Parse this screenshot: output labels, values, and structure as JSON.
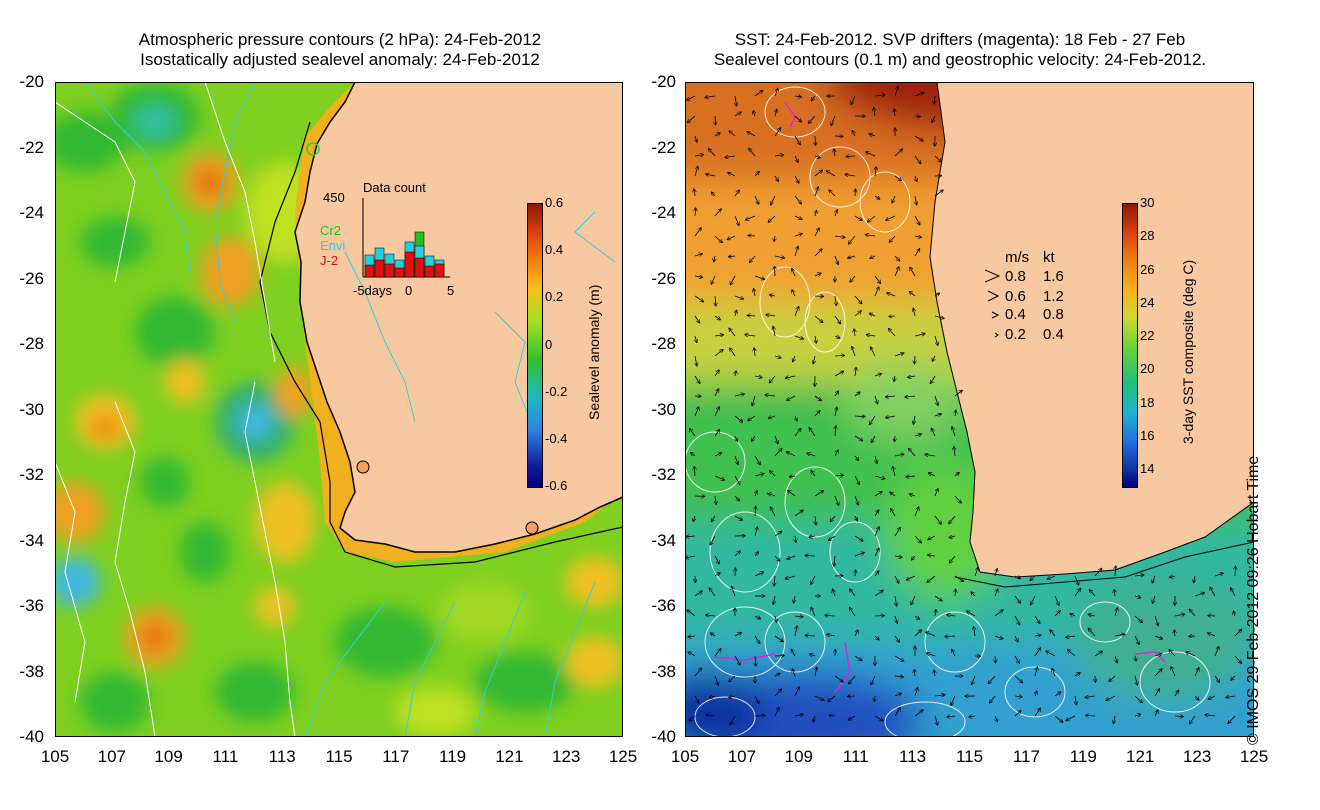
{
  "left_panel": {
    "title_line1": "Atmospheric pressure contours (2 hPa): 24-Feb-2012",
    "title_line2": "Isostatically adjusted sealevel anomaly: 24-Feb-2012",
    "colorbar": {
      "label": "Sealevel anomaly (m)",
      "ticks": [
        "0.6",
        "0.4",
        "0.2",
        "0",
        "-0.2",
        "-0.4",
        "-0.6"
      ],
      "range": [
        -0.6,
        0.6
      ]
    },
    "inset": {
      "title": "Data count",
      "y_max_label": "450",
      "x_labels": [
        "-5days",
        "0",
        "5"
      ],
      "legend": [
        {
          "label": "Cr2",
          "color": "#22c022"
        },
        {
          "label": "Envi",
          "color": "#22d0e0"
        },
        {
          "label": "J-2",
          "color": "#e01010"
        }
      ]
    }
  },
  "right_panel": {
    "title_line1": "SST: 24-Feb-2012. SVP drifters (magenta): 18 Feb - 27 Feb",
    "title_line2": "Sealevel contours (0.1 m) and geostrophic velocity: 24-Feb-2012.",
    "colorbar": {
      "label": "3-day SST composite (deg C)",
      "ticks": [
        "30",
        "28",
        "26",
        "24",
        "22",
        "20",
        "18",
        "16",
        "14"
      ],
      "range": [
        13,
        30
      ]
    },
    "speed_legend": {
      "header_ms": "m/s",
      "header_kt": "kt",
      "rows": [
        {
          "ms": "0.8",
          "kt": "1.6"
        },
        {
          "ms": "0.6",
          "kt": "1.2"
        },
        {
          "ms": "0.4",
          "kt": "0.8"
        },
        {
          "ms": "0.2",
          "kt": "0.4"
        }
      ]
    }
  },
  "axes": {
    "lat_labels": [
      "-20",
      "-22",
      "-24",
      "-26",
      "-28",
      "-30",
      "-32",
      "-34",
      "-36",
      "-38",
      "-40"
    ],
    "lon_labels": [
      "105",
      "107",
      "109",
      "111",
      "113",
      "115",
      "117",
      "119",
      "121",
      "123",
      "125"
    ],
    "lat_range": [
      -40,
      -20
    ],
    "lon_range": [
      105,
      125
    ]
  },
  "credit": "© IMOS 29-Feb-2012 09:26 Hobart Time",
  "colors": {
    "land": "#f8c8a0",
    "coast_line": "#000000",
    "bathy_contour": "#30d0e0",
    "pressure_contour": "#ffffff",
    "drifter": "#e020e0"
  }
}
